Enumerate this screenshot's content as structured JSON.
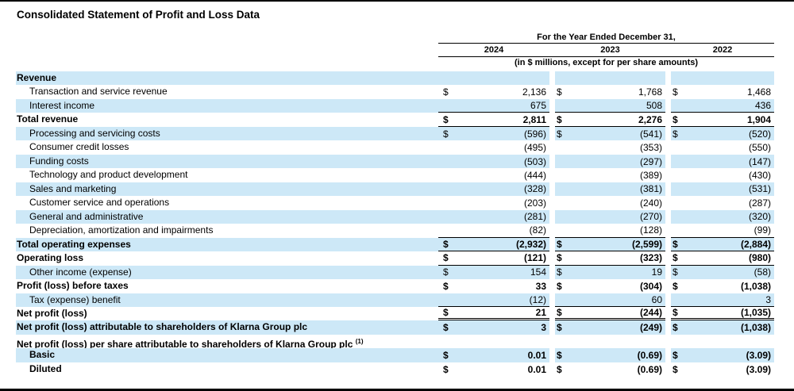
{
  "page": {
    "title": "Consolidated Statement of Profit and Loss Data"
  },
  "table": {
    "period_header": "For the Year Ended December 31,",
    "years": [
      "2024",
      "2023",
      "2022"
    ],
    "units_note": "(in $ millions, except for per share amounts)",
    "currency_symbol": "$",
    "rows": [
      {
        "label": "Revenue",
        "bold": true,
        "indent": false,
        "bg": "blue",
        "dollar": false,
        "values": [
          "",
          "",
          ""
        ],
        "border": "none"
      },
      {
        "label": "Transaction and service revenue",
        "bold": false,
        "indent": true,
        "bg": "white",
        "dollar": true,
        "values": [
          "2,136",
          "1,768",
          "1,468"
        ],
        "border": "none"
      },
      {
        "label": "Interest income",
        "bold": false,
        "indent": true,
        "bg": "blue",
        "dollar": false,
        "values": [
          "675",
          "508",
          "436"
        ],
        "border": "single"
      },
      {
        "label": "Total revenue",
        "bold": true,
        "indent": false,
        "bg": "white",
        "dollar": true,
        "values": [
          "2,811",
          "2,276",
          "1,904"
        ],
        "border": "single"
      },
      {
        "label": "Processing and servicing costs",
        "bold": false,
        "indent": true,
        "bg": "blue",
        "dollar": true,
        "values": [
          "(596)",
          "(541)",
          "(520)"
        ],
        "border": "none"
      },
      {
        "label": "Consumer credit losses",
        "bold": false,
        "indent": true,
        "bg": "white",
        "dollar": false,
        "values": [
          "(495)",
          "(353)",
          "(550)"
        ],
        "border": "none"
      },
      {
        "label": "Funding costs",
        "bold": false,
        "indent": true,
        "bg": "blue",
        "dollar": false,
        "values": [
          "(503)",
          "(297)",
          "(147)"
        ],
        "border": "none"
      },
      {
        "label": "Technology and product development",
        "bold": false,
        "indent": true,
        "bg": "white",
        "dollar": false,
        "values": [
          "(444)",
          "(389)",
          "(430)"
        ],
        "border": "none"
      },
      {
        "label": "Sales and marketing",
        "bold": false,
        "indent": true,
        "bg": "blue",
        "dollar": false,
        "values": [
          "(328)",
          "(381)",
          "(531)"
        ],
        "border": "none"
      },
      {
        "label": "Customer service and operations",
        "bold": false,
        "indent": true,
        "bg": "white",
        "dollar": false,
        "values": [
          "(203)",
          "(240)",
          "(287)"
        ],
        "border": "none"
      },
      {
        "label": "General and administrative",
        "bold": false,
        "indent": true,
        "bg": "blue",
        "dollar": false,
        "values": [
          "(281)",
          "(270)",
          "(320)"
        ],
        "border": "none"
      },
      {
        "label": "Depreciation, amortization and impairments",
        "bold": false,
        "indent": true,
        "bg": "white",
        "dollar": false,
        "values": [
          "(82)",
          "(128)",
          "(99)"
        ],
        "border": "single"
      },
      {
        "label": "Total operating expenses",
        "bold": true,
        "indent": false,
        "bg": "blue",
        "dollar": true,
        "values": [
          "(2,932)",
          "(2,599)",
          "(2,884)"
        ],
        "border": "single"
      },
      {
        "label": "Operating loss",
        "bold": true,
        "indent": false,
        "bg": "white",
        "dollar": true,
        "values": [
          "(121)",
          "(323)",
          "(980)"
        ],
        "border": "single"
      },
      {
        "label": "Other income (expense)",
        "bold": false,
        "indent": true,
        "bg": "blue",
        "dollar": true,
        "values": [
          "154",
          "19",
          "(58)"
        ],
        "border": "none"
      },
      {
        "label": "Profit (loss) before taxes",
        "bold": true,
        "indent": false,
        "bg": "white",
        "dollar": true,
        "values": [
          "33",
          "(304)",
          "(1,038)"
        ],
        "border": "none"
      },
      {
        "label": "Tax (expense) benefit",
        "bold": false,
        "indent": true,
        "bg": "blue",
        "dollar": false,
        "values": [
          "(12)",
          "60",
          "3"
        ],
        "border": "single"
      },
      {
        "label": "Net profit (loss)",
        "bold": true,
        "indent": false,
        "bg": "white",
        "dollar": true,
        "values": [
          "21",
          "(244)",
          "(1,035)"
        ],
        "border": "double"
      },
      {
        "label": "Net profit (loss) attributable to shareholders of Klarna Group plc",
        "bold": true,
        "indent": false,
        "bg": "blue",
        "dollar": true,
        "values": [
          "3",
          "(249)",
          "(1,038)"
        ],
        "border": "none"
      },
      {
        "label": "Net profit (loss) per share attributable to shareholders of Klarna Group plc ",
        "sup": "(1)",
        "bold": true,
        "indent": false,
        "bg": "white",
        "dollar": false,
        "values": [
          "",
          "",
          ""
        ],
        "border": "none"
      },
      {
        "label": "Basic",
        "bold": true,
        "indent": true,
        "bg": "blue",
        "dollar": true,
        "values": [
          "0.01",
          "(0.69)",
          "(3.09)"
        ],
        "border": "none"
      },
      {
        "label": "Diluted",
        "bold": true,
        "indent": true,
        "bg": "white",
        "dollar": true,
        "values": [
          "0.01",
          "(0.69)",
          "(3.09)"
        ],
        "border": "none"
      }
    ]
  },
  "colors": {
    "highlight_blue": "#CDE8F7",
    "rule_black": "#000000"
  }
}
